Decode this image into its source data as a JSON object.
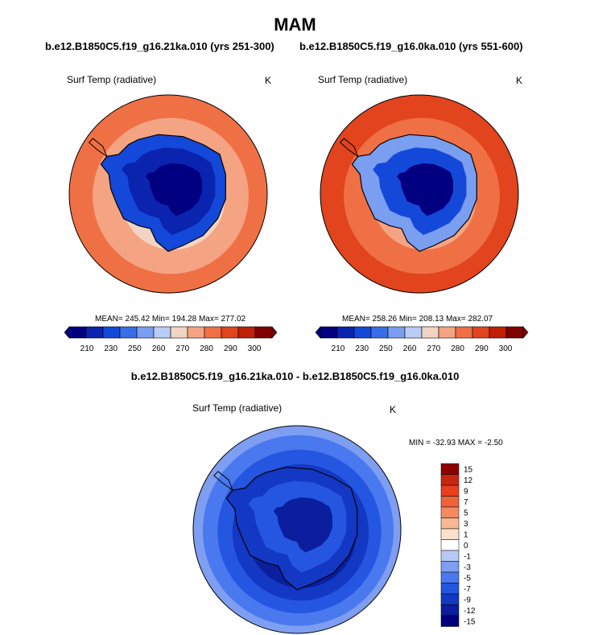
{
  "page": {
    "title": "MAM",
    "diff_title": "b.e12.B1850C5.f19_g16.21ka.010 - b.e12.B1850C5.f19_g16.0ka.010"
  },
  "colors": {
    "seq12": [
      "#000080",
      "#0a24b0",
      "#1448d8",
      "#3a6ee8",
      "#7a9ef0",
      "#b8ccf6",
      "#f2d4c4",
      "#f4a482",
      "#f07046",
      "#e2441e",
      "#c02008",
      "#800000"
    ],
    "diff": [
      "#000080",
      "#0a1e9e",
      "#1238c4",
      "#2456e2",
      "#4a78ee",
      "#7e9ef2",
      "#b6c8f4",
      "#ffffff",
      "#fbe0cc",
      "#f7b896",
      "#f48a62",
      "#f0623a",
      "#e8401c",
      "#c82610",
      "#8c0000"
    ]
  },
  "chart_data": [
    {
      "type": "heatmap",
      "title": "b.e12.B1850C5.f19_g16.21ka.010 (yrs 251-300)",
      "variable": "Surf Temp (radiative)",
      "units": "K",
      "stats": "MEAN= 245.42  Min= 194.28  Max= 277.02",
      "mean": 245.42,
      "min": 194.28,
      "max": 277.02,
      "contour_levels": [
        205,
        210,
        220,
        230,
        240,
        250,
        255,
        260,
        265,
        270,
        275,
        280,
        285,
        290,
        295,
        300
      ],
      "colorbar_ticks": [
        "210",
        "230",
        "250",
        "260",
        "270",
        "280",
        "290",
        "300"
      ],
      "field_rings": [
        276,
        272,
        267,
        262,
        256,
        250,
        245,
        240
      ],
      "interior_levels": [
        228,
        215,
        205
      ]
    },
    {
      "type": "heatmap",
      "title": "b.e12.B1850C5.f19_g16.0ka.010 (yrs 551-600)",
      "variable": "Surf Temp (radiative)",
      "units": "K",
      "stats": "MEAN= 258.26  Min= 208.13  Max= 282.07",
      "mean": 258.26,
      "min": 208.13,
      "max": 282.07,
      "contour_levels": [
        205,
        210,
        220,
        230,
        240,
        250,
        255,
        260,
        265,
        270,
        275,
        280,
        285,
        290,
        295,
        300
      ],
      "colorbar_ticks": [
        "210",
        "230",
        "250",
        "260",
        "270",
        "280",
        "290",
        "300"
      ],
      "field_rings": [
        281,
        277,
        274,
        270,
        266,
        262,
        258,
        254
      ],
      "interior_levels": [
        240,
        225,
        212
      ]
    },
    {
      "type": "heatmap",
      "title": "b.e12.B1850C5.f19_g16.21ka.010 - b.e12.B1850C5.f19_g16.0ka.010",
      "variable": "Surf Temp (radiative)",
      "units": "K",
      "stats": "MIN = -32.93 MAX =  -2.50",
      "min": -32.93,
      "max": -2.5,
      "colorbar_ticks": [
        "15",
        "12",
        "9",
        "7",
        "5",
        "3",
        "1",
        "0",
        "-1",
        "-3",
        "-5",
        "-7",
        "-9",
        "-12",
        "-15"
      ],
      "field_rings": [
        -5,
        -7,
        -9,
        -12,
        -15,
        -15,
        -15,
        -15
      ],
      "interior_levels": [
        -12,
        -9,
        -15
      ]
    }
  ]
}
